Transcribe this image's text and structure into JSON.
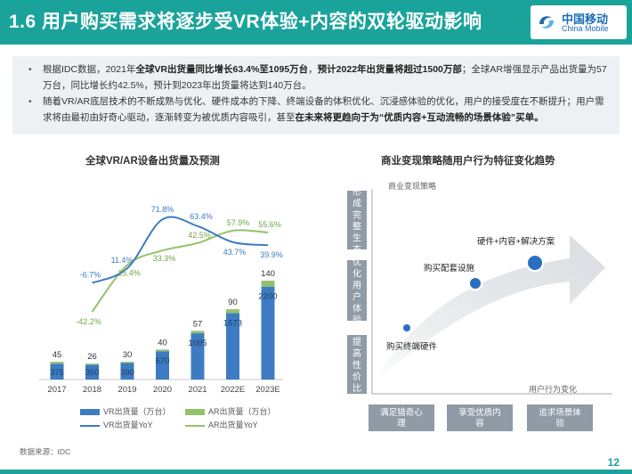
{
  "header": {
    "title": "1.6 用户购买需求将逐步受VR体验+内容的双轮驱动影响",
    "logo_cn": "中国移动",
    "logo_en": "China Mobile",
    "brand_color": "#1aa39a"
  },
  "bullets": [
    {
      "pre": "根据IDC数据，2021年",
      "bold1": "全球VR出货量同比增长63.4%至1095万台",
      "mid": "，",
      "bold2": "预计2022年出货量将超过1500万部",
      "post": "；全球AR增强显示产品出货量为57万台，同比增长约42.5%，预计到2023年出货量将达到140万台。"
    },
    {
      "pre": "随着VR/AR底层技术的不断成熟与优化、硬件成本的下降、终端设备的体积优化、沉浸感体验的优化，用户的接受度在不断提升；用户需求将由最初由好奇心驱动，逐渐转变为被优质内容吸引，甚至",
      "bold1": "在未来将更趋向于为“优质内容+互动流畅的场景体验”买单。",
      "mid": "",
      "bold2": "",
      "post": ""
    }
  ],
  "chart_data": [
    {
      "type": "bar",
      "title": "全球VR/AR设备出货量及预测",
      "categories": [
        "2017",
        "2018",
        "2019",
        "2020",
        "2021",
        "2022E",
        "2023E"
      ],
      "series": [
        {
          "name": "VR出货量（万台）",
          "type": "bar",
          "stacked": true,
          "color": "#3d7cc2",
          "values": [
            375,
            350,
            390,
            670,
            1095,
            1573,
            2200
          ]
        },
        {
          "name": "AR出货量（万台）",
          "type": "bar",
          "stacked": true,
          "color": "#92c36a",
          "values": [
            45,
            26,
            30,
            40,
            57,
            90,
            140
          ]
        },
        {
          "name": "VR出货量YoY",
          "type": "line",
          "color": "#3d7cc2",
          "unit": "%",
          "values": [
            null,
            -6.7,
            11.4,
            71.8,
            63.4,
            43.7,
            39.9
          ]
        },
        {
          "name": "AR出货量YoY",
          "type": "line",
          "color": "#92c36a",
          "unit": "%",
          "values": [
            null,
            -42.2,
            15.4,
            33.3,
            42.5,
            57.9,
            55.6
          ]
        }
      ],
      "legend": "bottom"
    },
    {
      "type": "diagram",
      "title": "商业变现策略随用户行为特征变化趋势",
      "y_axis_label": "商业变现策略",
      "x_axis_label": "用户行为变化",
      "y_levels": [
        "形成完整生态",
        "优化用户体验",
        "提高性价比"
      ],
      "x_levels": [
        "满足猎奇心理",
        "享受优质内容",
        "追求场景体验"
      ],
      "stages": [
        "购买终端硬件",
        "购买配套设施",
        "硬件+内容+解决方案"
      ],
      "colors": {
        "panel": "#8f9ba6",
        "dot": "#2a6fbf",
        "arrow": "#e3e6e9"
      }
    }
  ],
  "source": "数据来源：IDC",
  "page_number": "12"
}
